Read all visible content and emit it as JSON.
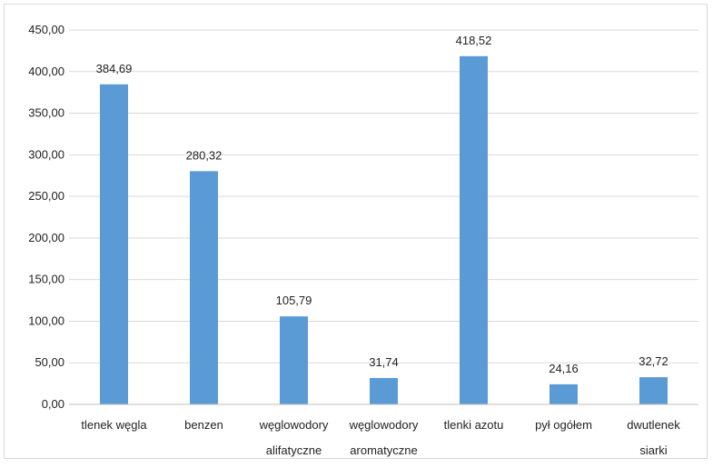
{
  "chart_data": {
    "type": "bar",
    "title": "",
    "xlabel": "",
    "ylabel": "",
    "categories": [
      [
        "tlenek węgla"
      ],
      [
        "benzen"
      ],
      [
        "węglowodory",
        "alifatyczne"
      ],
      [
        "węglowodory",
        "aromatyczne"
      ],
      [
        "tlenki azotu"
      ],
      [
        "pył ogółem"
      ],
      [
        "dwutlenek",
        "siarki"
      ]
    ],
    "values": [
      384.69,
      280.32,
      105.79,
      31.74,
      418.52,
      24.16,
      32.72
    ],
    "value_labels": [
      "384,69",
      "280,32",
      "105,79",
      "31,74",
      "418,52",
      "24,16",
      "32,72"
    ],
    "ylim": [
      0,
      450
    ],
    "yticks": [
      0,
      50,
      100,
      150,
      200,
      250,
      300,
      350,
      400,
      450
    ],
    "ytick_labels": [
      "0,00",
      "50,00",
      "100,00",
      "150,00",
      "200,00",
      "250,00",
      "300,00",
      "350,00",
      "400,00",
      "450,00"
    ],
    "grid": true,
    "legend": "none",
    "colors": {
      "bar": "#5b9bd5",
      "grid": "#d9d9d9",
      "axis": "#bfbfbf",
      "text": "#222222"
    }
  }
}
